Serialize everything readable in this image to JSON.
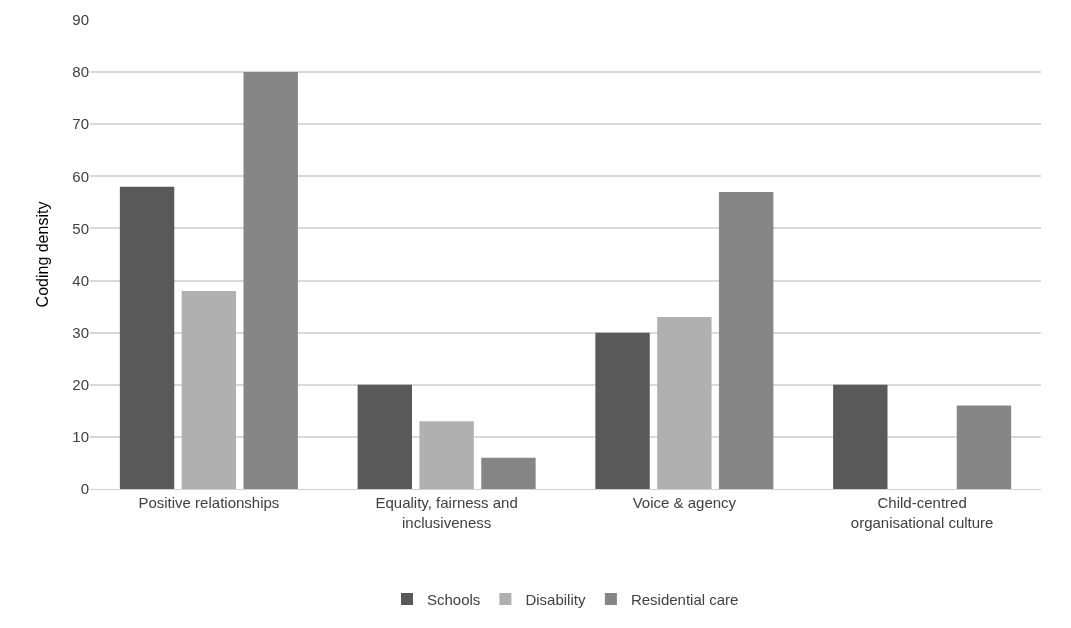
{
  "chart_data": {
    "type": "bar",
    "ylabel": "Coding density",
    "categories": [
      "Positive relationships",
      "Equality, fairness and inclusiveness",
      "Voice & agency",
      "Child-centred organisational culture"
    ],
    "series": [
      {
        "name": "Schools",
        "color": "#595959",
        "values": [
          58,
          20,
          30,
          20
        ]
      },
      {
        "name": "Disability",
        "color": "#b0b0b0",
        "values": [
          38,
          13,
          33,
          0
        ]
      },
      {
        "name": "Residential care",
        "color": "#868686",
        "values": [
          80,
          6,
          57,
          16
        ]
      }
    ],
    "ylim": [
      0,
      90
    ],
    "yticks": [
      0,
      10,
      20,
      30,
      40,
      50,
      60,
      70,
      80,
      90
    ],
    "grid": "y",
    "legend": "bottom"
  }
}
